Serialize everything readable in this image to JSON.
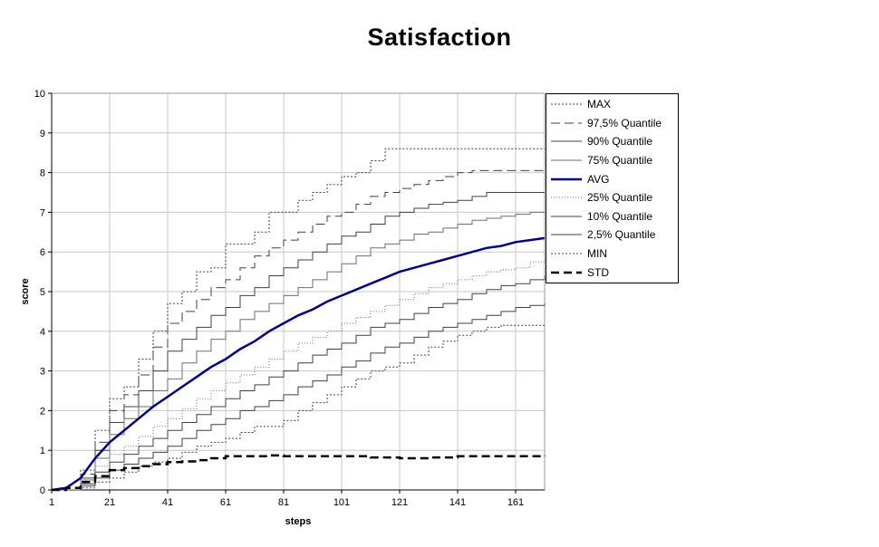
{
  "page": {
    "background": "#ffffff"
  },
  "chart_data": {
    "type": "line",
    "title": "Satisfaction",
    "xlabel": "steps",
    "ylabel": "score",
    "xlim": [
      1,
      171
    ],
    "ylim": [
      0,
      10
    ],
    "x_ticks": [
      1,
      21,
      41,
      61,
      81,
      101,
      121,
      141,
      161
    ],
    "y_ticks": [
      0,
      1,
      2,
      3,
      4,
      5,
      6,
      7,
      8,
      9,
      10
    ],
    "grid": true,
    "grid_color": "#c8c8c8",
    "legend_position": "right",
    "accent_color": "#00008B",
    "x": [
      1,
      6,
      11,
      16,
      21,
      26,
      31,
      36,
      41,
      46,
      51,
      56,
      61,
      66,
      71,
      76,
      81,
      86,
      91,
      96,
      101,
      106,
      111,
      116,
      121,
      126,
      131,
      136,
      141,
      146,
      151,
      156,
      161,
      166,
      171
    ],
    "series": [
      {
        "name": "MAX",
        "interp": "step",
        "color": "#404040",
        "width": 1,
        "dash": "2 2",
        "values": [
          0,
          0,
          0.5,
          1.5,
          2.3,
          2.6,
          3.3,
          4.0,
          4.7,
          5.0,
          5.5,
          5.6,
          6.2,
          6.2,
          6.5,
          7.0,
          7.0,
          7.3,
          7.5,
          7.7,
          7.9,
          8.0,
          8.3,
          8.6,
          8.6,
          8.6,
          8.6,
          8.6,
          8.6,
          8.6,
          8.6,
          8.6,
          8.6,
          8.6,
          8.6
        ]
      },
      {
        "name": "97,5% Quantile",
        "interp": "step",
        "color": "#404040",
        "width": 1,
        "dash": "10 5",
        "values": [
          0,
          0,
          0.4,
          1.2,
          2.0,
          2.4,
          2.9,
          3.6,
          4.2,
          4.5,
          4.8,
          5.1,
          5.3,
          5.6,
          5.9,
          6.1,
          6.3,
          6.5,
          6.7,
          6.9,
          7.0,
          7.2,
          7.4,
          7.5,
          7.6,
          7.7,
          7.8,
          7.9,
          8.0,
          8.05,
          8.05,
          8.05,
          8.05,
          8.05,
          8.05
        ]
      },
      {
        "name": "90% Quantile",
        "interp": "step",
        "color": "#404040",
        "width": 1,
        "dash": "",
        "values": [
          0,
          0,
          0.3,
          1.0,
          1.7,
          2.1,
          2.5,
          3.0,
          3.5,
          3.8,
          4.1,
          4.4,
          4.6,
          4.9,
          5.1,
          5.4,
          5.6,
          5.8,
          6.0,
          6.2,
          6.4,
          6.5,
          6.7,
          6.9,
          7.0,
          7.1,
          7.2,
          7.25,
          7.3,
          7.4,
          7.5,
          7.5,
          7.5,
          7.5,
          7.5
        ]
      },
      {
        "name": "75% Quantile",
        "interp": "step",
        "color": "#6e6e6e",
        "width": 1,
        "dash": "",
        "values": [
          0,
          0,
          0.25,
          0.8,
          1.4,
          1.8,
          2.1,
          2.5,
          2.8,
          3.2,
          3.5,
          3.8,
          4.0,
          4.3,
          4.5,
          4.7,
          4.9,
          5.1,
          5.3,
          5.5,
          5.7,
          5.9,
          6.1,
          6.2,
          6.3,
          6.45,
          6.5,
          6.6,
          6.7,
          6.8,
          6.85,
          6.9,
          6.95,
          7.0,
          7.0
        ]
      },
      {
        "name": "AVG",
        "interp": "linear",
        "color": "#00008B",
        "width": 2.5,
        "dash": "",
        "values": [
          0,
          0.05,
          0.3,
          0.8,
          1.2,
          1.5,
          1.8,
          2.1,
          2.35,
          2.6,
          2.85,
          3.1,
          3.3,
          3.55,
          3.75,
          4.0,
          4.2,
          4.4,
          4.55,
          4.75,
          4.9,
          5.05,
          5.2,
          5.35,
          5.5,
          5.6,
          5.7,
          5.8,
          5.9,
          6.0,
          6.1,
          6.15,
          6.25,
          6.3,
          6.35
        ]
      },
      {
        "name": "25% Quantile",
        "interp": "step",
        "color": "#6e6e6e",
        "width": 1,
        "dash": "1 2",
        "values": [
          0,
          0,
          0.2,
          0.6,
          0.9,
          1.1,
          1.35,
          1.6,
          1.8,
          2.05,
          2.3,
          2.5,
          2.7,
          2.9,
          3.1,
          3.3,
          3.5,
          3.7,
          3.85,
          4.0,
          4.2,
          4.35,
          4.5,
          4.65,
          4.8,
          4.95,
          5.1,
          5.2,
          5.3,
          5.4,
          5.5,
          5.55,
          5.6,
          5.75,
          5.85
        ]
      },
      {
        "name": "10% Quantile",
        "interp": "step",
        "color": "#404040",
        "width": 1,
        "dash": "",
        "values": [
          0,
          0,
          0.15,
          0.45,
          0.7,
          0.9,
          1.1,
          1.3,
          1.5,
          1.7,
          1.9,
          2.1,
          2.3,
          2.5,
          2.65,
          2.85,
          3.0,
          3.2,
          3.4,
          3.55,
          3.7,
          3.9,
          4.1,
          4.2,
          4.3,
          4.45,
          4.6,
          4.7,
          4.8,
          4.95,
          5.05,
          5.15,
          5.2,
          5.3,
          5.4
        ]
      },
      {
        "name": "2,5% Quantile",
        "interp": "step",
        "color": "#404040",
        "width": 1,
        "dash": "",
        "values": [
          0,
          0,
          0.1,
          0.3,
          0.5,
          0.65,
          0.8,
          0.95,
          1.1,
          1.3,
          1.5,
          1.65,
          1.8,
          2.0,
          2.1,
          2.25,
          2.4,
          2.6,
          2.75,
          2.9,
          3.1,
          3.25,
          3.45,
          3.6,
          3.7,
          3.85,
          4.0,
          4.1,
          4.2,
          4.3,
          4.4,
          4.5,
          4.6,
          4.65,
          4.7
        ]
      },
      {
        "name": "MIN",
        "interp": "step",
        "color": "#404040",
        "width": 1,
        "dash": "2 2",
        "values": [
          0,
          0,
          0.05,
          0.2,
          0.3,
          0.45,
          0.6,
          0.7,
          0.8,
          0.95,
          1.1,
          1.2,
          1.3,
          1.45,
          1.6,
          1.6,
          1.75,
          2.0,
          2.2,
          2.4,
          2.6,
          2.8,
          3.0,
          3.1,
          3.2,
          3.4,
          3.6,
          3.75,
          3.9,
          4.0,
          4.1,
          4.15,
          4.15,
          4.15,
          4.15
        ]
      },
      {
        "name": "STD",
        "interp": "step",
        "color": "#000000",
        "width": 2.5,
        "dash": "9 5",
        "values": [
          0,
          0.05,
          0.2,
          0.35,
          0.5,
          0.55,
          0.6,
          0.65,
          0.7,
          0.72,
          0.75,
          0.8,
          0.85,
          0.85,
          0.85,
          0.87,
          0.85,
          0.85,
          0.85,
          0.85,
          0.85,
          0.85,
          0.82,
          0.82,
          0.8,
          0.8,
          0.82,
          0.82,
          0.85,
          0.85,
          0.85,
          0.85,
          0.85,
          0.85,
          0.87
        ]
      }
    ]
  }
}
